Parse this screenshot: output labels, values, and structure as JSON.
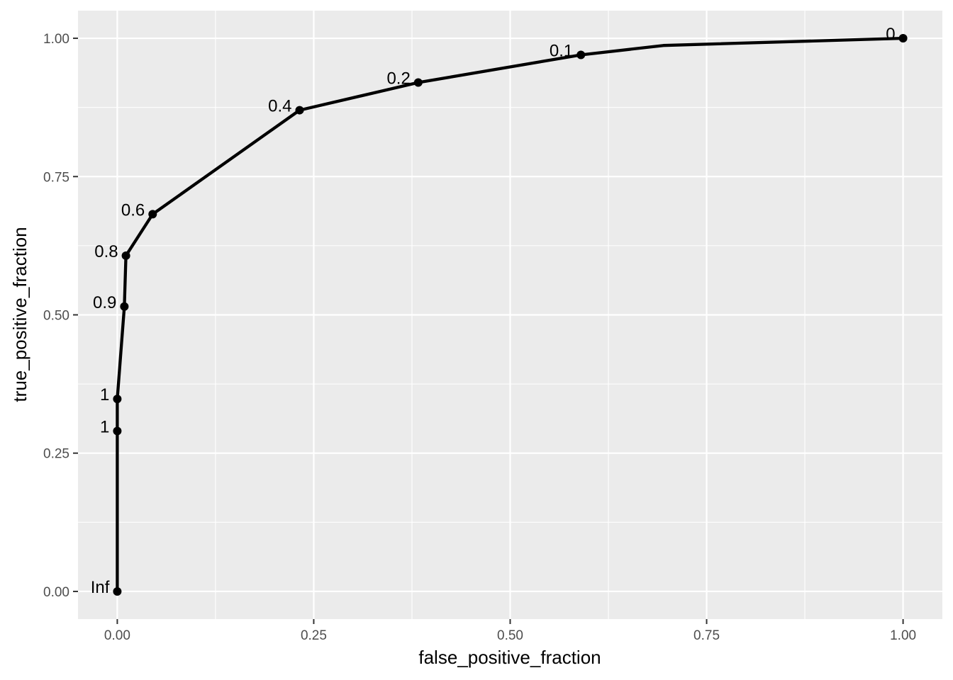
{
  "chart_data": {
    "type": "line",
    "title": "",
    "xlabel": "false_positive_fraction",
    "ylabel": "true_positive_fraction",
    "xlim": [
      -0.05,
      1.05
    ],
    "ylim": [
      -0.05,
      1.05
    ],
    "grid": true,
    "x_ticks": [
      "0.00",
      "0.25",
      "0.50",
      "0.75",
      "1.00"
    ],
    "y_ticks": [
      "0.00",
      "0.25",
      "0.50",
      "0.75",
      "1.00"
    ],
    "tick_values": [
      0,
      0.25,
      0.5,
      0.75,
      1
    ],
    "line_points": [
      {
        "x": 0.0,
        "y": 0.0
      },
      {
        "x": 0.0,
        "y": 0.29
      },
      {
        "x": 0.0,
        "y": 0.348
      },
      {
        "x": 0.009,
        "y": 0.515
      },
      {
        "x": 0.011,
        "y": 0.607
      },
      {
        "x": 0.045,
        "y": 0.682
      },
      {
        "x": 0.232,
        "y": 0.87
      },
      {
        "x": 0.383,
        "y": 0.92
      },
      {
        "x": 0.59,
        "y": 0.97
      },
      {
        "x": 0.695,
        "y": 0.987
      },
      {
        "x": 1.0,
        "y": 1.0
      }
    ],
    "labeled_points": [
      {
        "x": 0.0,
        "y": 0.0,
        "label": "Inf"
      },
      {
        "x": 0.0,
        "y": 0.29,
        "label": "1"
      },
      {
        "x": 0.0,
        "y": 0.348,
        "label": "1"
      },
      {
        "x": 0.009,
        "y": 0.515,
        "label": "0.9"
      },
      {
        "x": 0.011,
        "y": 0.607,
        "label": "0.8"
      },
      {
        "x": 0.045,
        "y": 0.682,
        "label": "0.6"
      },
      {
        "x": 0.232,
        "y": 0.87,
        "label": "0.4"
      },
      {
        "x": 0.383,
        "y": 0.92,
        "label": "0.2"
      },
      {
        "x": 0.59,
        "y": 0.97,
        "label": "0.1"
      },
      {
        "x": 1.0,
        "y": 1.0,
        "label": "0"
      }
    ],
    "colors": {
      "panel_background": "#ebebeb",
      "grid": "#ffffff",
      "line": "#000000",
      "tick_text": "#4d4d4d"
    }
  }
}
